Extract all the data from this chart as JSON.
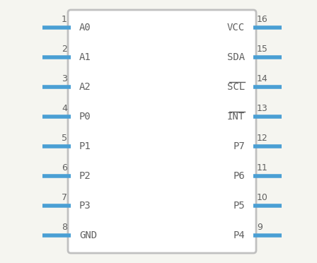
{
  "left_pins": [
    {
      "num": 1,
      "label": "A0"
    },
    {
      "num": 2,
      "label": "A1"
    },
    {
      "num": 3,
      "label": "A2"
    },
    {
      "num": 4,
      "label": "P0"
    },
    {
      "num": 5,
      "label": "P1"
    },
    {
      "num": 6,
      "label": "P2"
    },
    {
      "num": 7,
      "label": "P3"
    },
    {
      "num": 8,
      "label": "GND"
    }
  ],
  "right_pins": [
    {
      "num": 16,
      "label": "VCC"
    },
    {
      "num": 15,
      "label": "SDA"
    },
    {
      "num": 14,
      "label": "SCL",
      "overline": true
    },
    {
      "num": 13,
      "label": "INT",
      "overline": true
    },
    {
      "num": 12,
      "label": "P7"
    },
    {
      "num": 11,
      "label": "P6"
    },
    {
      "num": 10,
      "label": "P5"
    },
    {
      "num": 9,
      "label": "P4"
    }
  ],
  "body_color": "#c0c0c0",
  "body_fill": "#ffffff",
  "pin_color": "#4a9fd4",
  "num_color": "#606060",
  "label_color": "#606060",
  "bg_color": "#f5f5f0",
  "pin_linewidth": 4.0,
  "body_linewidth": 2.0,
  "font_size_label": 10,
  "font_size_num": 9
}
